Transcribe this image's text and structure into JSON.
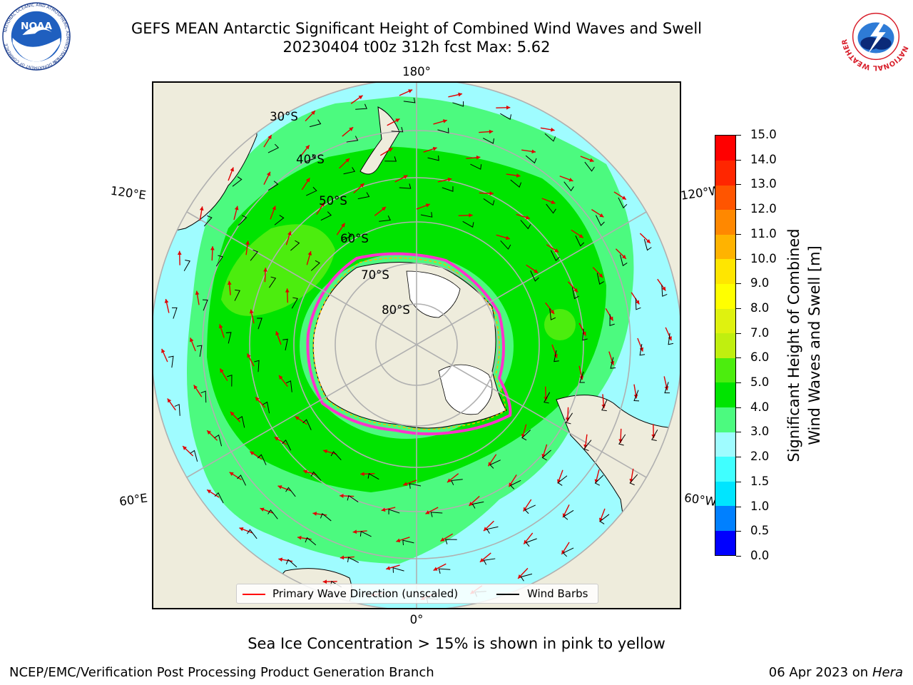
{
  "header": {
    "title_line1": "GEFS MEAN Antarctic Significant Height of Combined Wind Waves and Swell",
    "title_line2": "20230404 t00z 312h fcst   Max: 5.62"
  },
  "logos": {
    "noaa_text": "NOAA",
    "noaa_ring_text": "NATIONAL OCEANIC AND ATMOSPHERIC ADMINISTRATION",
    "noaa_dept_text": "U.S. DEPARTMENT OF COMMERCE",
    "nws_ring_text": "NATIONAL WEATHER SERVICE"
  },
  "map": {
    "projection": "south-polar-stereographic",
    "longitude_labels": {
      "top": "180°",
      "bottom": "0°",
      "left_upper": "120°E",
      "left_lower": "60°E",
      "right_upper": "120°W",
      "right_lower": "60°W"
    },
    "latitude_labels": [
      "30°S",
      "40°S",
      "50°S",
      "60°S",
      "70°S",
      "80°S"
    ],
    "colors": {
      "land": "#eeecdc",
      "ice_shelf": "#ffffff",
      "ocean_low": "#9ffcff",
      "band_3_4": "#4cfa7f",
      "band_4_5": "#00e400",
      "band_5_6": "#4ced0e",
      "graticule": "#b0b0b0",
      "sea_ice": "#ff33cc",
      "arrow": "#e00000"
    }
  },
  "colorbar": {
    "title_line1": "Significant Height of Combined",
    "title_line2": "Wind Waves and Swell [m]",
    "ticks": [
      "0.0",
      "0.5",
      "1.0",
      "1.5",
      "2.0",
      "3.0",
      "4.0",
      "5.0",
      "6.0",
      "7.0",
      "8.0",
      "9.0",
      "10.0",
      "11.0",
      "12.0",
      "13.0",
      "14.0",
      "15.0"
    ],
    "colors": [
      "#0000ff",
      "#0080ff",
      "#00e5ff",
      "#40ffff",
      "#9ffcff",
      "#4cfa7f",
      "#00e400",
      "#4ced0e",
      "#c0ef0f",
      "#dff20f",
      "#ffff00",
      "#ffe600",
      "#ffb300",
      "#ff8800",
      "#ff5500",
      "#ff2600",
      "#ff0000"
    ]
  },
  "legend": {
    "primary_wave_label": "Primary Wave Direction (unscaled)",
    "primary_wave_color": "#ff0000",
    "wind_barbs_label": "Wind Barbs",
    "wind_barbs_color": "#000000"
  },
  "captions": {
    "sea_ice_note": "Sea Ice Concentration > 15% is shown in pink to yellow",
    "footer_left": "NCEP/EMC/Verification Post Processing Product Generation Branch",
    "footer_date": "06 Apr 2023 on ",
    "footer_host": "Hera"
  }
}
